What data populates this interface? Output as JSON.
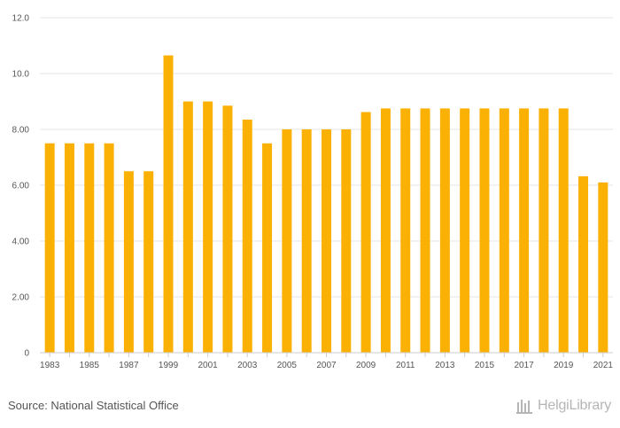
{
  "chart_data": {
    "type": "bar",
    "title": "",
    "xlabel": "",
    "ylabel": "",
    "ylim": [
      0,
      12
    ],
    "y_ticks": [
      "0",
      "2.00",
      "4.00",
      "6.00",
      "8.00",
      "10.0",
      "12.0"
    ],
    "grid": true,
    "categories": [
      "1983",
      "1984",
      "1985",
      "1986",
      "1987",
      "1988",
      "1999",
      "2000",
      "2001",
      "2002",
      "2003",
      "2004",
      "2005",
      "2006",
      "2007",
      "2008",
      "2009",
      "2010",
      "2011",
      "2012",
      "2013",
      "2014",
      "2015",
      "2016",
      "2017",
      "2018",
      "2019",
      "2020",
      "2021"
    ],
    "x_tick_labels": [
      "1983",
      "",
      "1985",
      "",
      "1987",
      "",
      "1999",
      "",
      "2001",
      "",
      "2003",
      "",
      "2005",
      "",
      "2007",
      "",
      "2009",
      "",
      "2011",
      "",
      "2013",
      "",
      "2015",
      "",
      "2017",
      "",
      "2019",
      "",
      "2021"
    ],
    "values": [
      7.5,
      7.5,
      7.5,
      7.5,
      6.5,
      6.5,
      10.65,
      9.0,
      9.0,
      8.85,
      8.35,
      7.5,
      8.0,
      8.0,
      8.0,
      8.0,
      8.62,
      8.75,
      8.75,
      8.75,
      8.75,
      8.75,
      8.75,
      8.75,
      8.75,
      8.75,
      8.75,
      6.32,
      6.1
    ],
    "bar_color": "#fbb004",
    "grid_color": "#e6e6e6"
  },
  "footer": {
    "source": "Source: National Statistical Office",
    "logo_text": "HelgiLibrary"
  }
}
